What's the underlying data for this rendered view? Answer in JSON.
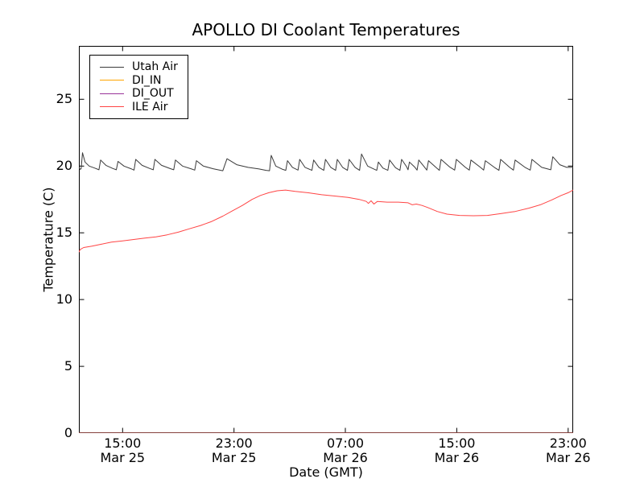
{
  "title": "APOLLO DI Coolant Temperatures",
  "legend": {
    "items": [
      {
        "label": "Utah Air",
        "color": "#3a3a3a"
      },
      {
        "label": "DI_IN",
        "color": "#ffa500"
      },
      {
        "label": "DI_OUT",
        "color": "#993399"
      },
      {
        "label": "ILE Air",
        "color": "#ff4444"
      }
    ]
  },
  "chart_data": {
    "type": "line",
    "title": "APOLLO DI Coolant Temperatures",
    "xlabel": "Date (GMT)",
    "ylabel": "Temperature (C)",
    "grid": false,
    "legend_position": "upper left",
    "x_unit": "hours since Mar 25 00:00 GMT",
    "xlim": [
      11.86,
      47.36
    ],
    "ylim": [
      0,
      29
    ],
    "x_ticks": [
      {
        "t": 15,
        "time": "15:00",
        "date": "Mar 25"
      },
      {
        "t": 23,
        "time": "23:00",
        "date": "Mar 25"
      },
      {
        "t": 31,
        "time": "07:00",
        "date": "Mar 26"
      },
      {
        "t": 39,
        "time": "15:00",
        "date": "Mar 26"
      },
      {
        "t": 47,
        "time": "23:00",
        "date": "Mar 26"
      }
    ],
    "y_ticks": [
      {
        "v": 0,
        "label": "0"
      },
      {
        "v": 5,
        "label": "5"
      },
      {
        "v": 10,
        "label": "10"
      },
      {
        "v": 15,
        "label": "15"
      },
      {
        "v": 20,
        "label": "20"
      },
      {
        "v": 25,
        "label": "25"
      }
    ],
    "series": [
      {
        "name": "Utah Air",
        "color": "#3a3a3a",
        "width": 1.0,
        "points": [
          [
            11.86,
            19.9
          ],
          [
            11.95,
            19.75
          ],
          [
            12.02,
            19.8
          ],
          [
            12.12,
            21.0
          ],
          [
            12.3,
            20.3
          ],
          [
            12.6,
            20.0
          ],
          [
            13.0,
            19.85
          ],
          [
            13.3,
            19.72
          ],
          [
            13.42,
            20.45
          ],
          [
            13.8,
            20.05
          ],
          [
            14.3,
            19.82
          ],
          [
            14.55,
            19.72
          ],
          [
            14.67,
            20.35
          ],
          [
            15.1,
            20.0
          ],
          [
            15.6,
            19.8
          ],
          [
            15.82,
            19.7
          ],
          [
            15.94,
            20.5
          ],
          [
            16.4,
            20.05
          ],
          [
            16.95,
            19.82
          ],
          [
            17.2,
            19.72
          ],
          [
            17.32,
            20.5
          ],
          [
            17.8,
            20.05
          ],
          [
            18.45,
            19.8
          ],
          [
            18.67,
            19.72
          ],
          [
            18.79,
            20.45
          ],
          [
            19.3,
            20.0
          ],
          [
            19.95,
            19.78
          ],
          [
            20.18,
            19.7
          ],
          [
            20.3,
            20.4
          ],
          [
            20.8,
            20.0
          ],
          [
            21.5,
            19.8
          ],
          [
            22.2,
            19.65
          ],
          [
            22.35,
            20.1
          ],
          [
            22.5,
            20.55
          ],
          [
            23.2,
            20.1
          ],
          [
            24.0,
            19.9
          ],
          [
            24.8,
            19.78
          ],
          [
            25.3,
            19.68
          ],
          [
            25.55,
            19.65
          ],
          [
            25.67,
            20.8
          ],
          [
            26.0,
            20.0
          ],
          [
            26.5,
            19.75
          ],
          [
            26.72,
            19.68
          ],
          [
            26.84,
            20.4
          ],
          [
            27.2,
            19.9
          ],
          [
            27.6,
            19.7
          ],
          [
            27.72,
            20.5
          ],
          [
            28.1,
            19.9
          ],
          [
            28.6,
            19.68
          ],
          [
            28.72,
            20.45
          ],
          [
            29.1,
            19.9
          ],
          [
            29.45,
            19.68
          ],
          [
            29.57,
            20.5
          ],
          [
            29.95,
            19.9
          ],
          [
            30.3,
            19.68
          ],
          [
            30.42,
            20.5
          ],
          [
            30.8,
            19.9
          ],
          [
            31.15,
            19.68
          ],
          [
            31.27,
            20.5
          ],
          [
            31.7,
            19.9
          ],
          [
            32.02,
            19.68
          ],
          [
            32.16,
            20.9
          ],
          [
            32.6,
            20.0
          ],
          [
            33.1,
            19.75
          ],
          [
            33.25,
            19.68
          ],
          [
            33.37,
            20.3
          ],
          [
            33.7,
            19.85
          ],
          [
            34.05,
            19.68
          ],
          [
            34.18,
            20.45
          ],
          [
            34.6,
            19.88
          ],
          [
            34.92,
            19.68
          ],
          [
            35.04,
            20.5
          ],
          [
            35.4,
            19.95
          ],
          [
            35.5,
            19.72
          ],
          [
            35.6,
            20.3
          ],
          [
            36.0,
            19.9
          ],
          [
            36.15,
            19.7
          ],
          [
            36.27,
            20.45
          ],
          [
            36.7,
            19.9
          ],
          [
            36.85,
            19.7
          ],
          [
            36.97,
            20.4
          ],
          [
            37.5,
            19.9
          ],
          [
            37.75,
            19.68
          ],
          [
            37.87,
            20.5
          ],
          [
            38.5,
            19.92
          ],
          [
            38.85,
            19.7
          ],
          [
            38.97,
            20.5
          ],
          [
            39.6,
            19.92
          ],
          [
            39.9,
            19.7
          ],
          [
            40.02,
            20.45
          ],
          [
            40.7,
            19.9
          ],
          [
            40.93,
            19.7
          ],
          [
            41.05,
            20.4
          ],
          [
            41.7,
            19.9
          ],
          [
            42.03,
            19.68
          ],
          [
            42.15,
            20.5
          ],
          [
            42.8,
            19.9
          ],
          [
            43.07,
            19.7
          ],
          [
            43.19,
            20.45
          ],
          [
            43.9,
            19.9
          ],
          [
            44.28,
            19.7
          ],
          [
            44.4,
            20.5
          ],
          [
            45.1,
            19.9
          ],
          [
            45.75,
            19.72
          ],
          [
            45.9,
            20.7
          ],
          [
            46.4,
            20.1
          ],
          [
            46.9,
            19.9
          ],
          [
            47.36,
            19.9
          ]
        ]
      },
      {
        "name": "DI_IN",
        "color": "#ffa500",
        "width": 1.2,
        "points": [
          [
            11.86,
            0
          ],
          [
            47.36,
            0
          ]
        ]
      },
      {
        "name": "DI_OUT",
        "color": "#993399",
        "width": 1.2,
        "opacity": 0.65,
        "points": [
          [
            11.86,
            0
          ],
          [
            47.36,
            0
          ]
        ]
      },
      {
        "name": "ILE Air",
        "color": "#ff4444",
        "width": 1.0,
        "points": [
          [
            11.86,
            13.55
          ],
          [
            11.95,
            13.75
          ],
          [
            12.2,
            13.9
          ],
          [
            12.8,
            14.0
          ],
          [
            13.5,
            14.15
          ],
          [
            14.2,
            14.3
          ],
          [
            15.0,
            14.4
          ],
          [
            15.8,
            14.5
          ],
          [
            16.6,
            14.6
          ],
          [
            17.4,
            14.7
          ],
          [
            18.2,
            14.85
          ],
          [
            19.0,
            15.05
          ],
          [
            19.8,
            15.3
          ],
          [
            20.6,
            15.55
          ],
          [
            21.4,
            15.85
          ],
          [
            22.2,
            16.25
          ],
          [
            22.9,
            16.65
          ],
          [
            23.6,
            17.05
          ],
          [
            24.3,
            17.5
          ],
          [
            24.9,
            17.8
          ],
          [
            25.5,
            18.0
          ],
          [
            26.1,
            18.15
          ],
          [
            26.7,
            18.2
          ],
          [
            27.4,
            18.1
          ],
          [
            28.3,
            18.0
          ],
          [
            29.3,
            17.85
          ],
          [
            30.3,
            17.75
          ],
          [
            31.2,
            17.65
          ],
          [
            32.0,
            17.5
          ],
          [
            32.5,
            17.35
          ],
          [
            32.65,
            17.2
          ],
          [
            32.85,
            17.4
          ],
          [
            33.05,
            17.15
          ],
          [
            33.3,
            17.35
          ],
          [
            34.0,
            17.3
          ],
          [
            34.8,
            17.3
          ],
          [
            35.5,
            17.25
          ],
          [
            35.8,
            17.1
          ],
          [
            36.1,
            17.15
          ],
          [
            36.5,
            17.05
          ],
          [
            36.9,
            16.9
          ],
          [
            37.6,
            16.6
          ],
          [
            38.3,
            16.4
          ],
          [
            39.2,
            16.3
          ],
          [
            40.2,
            16.28
          ],
          [
            41.2,
            16.3
          ],
          [
            42.2,
            16.45
          ],
          [
            43.2,
            16.6
          ],
          [
            44.2,
            16.85
          ],
          [
            45.0,
            17.1
          ],
          [
            45.8,
            17.45
          ],
          [
            46.5,
            17.8
          ],
          [
            47.0,
            18.0
          ],
          [
            47.36,
            18.2
          ]
        ]
      }
    ]
  }
}
